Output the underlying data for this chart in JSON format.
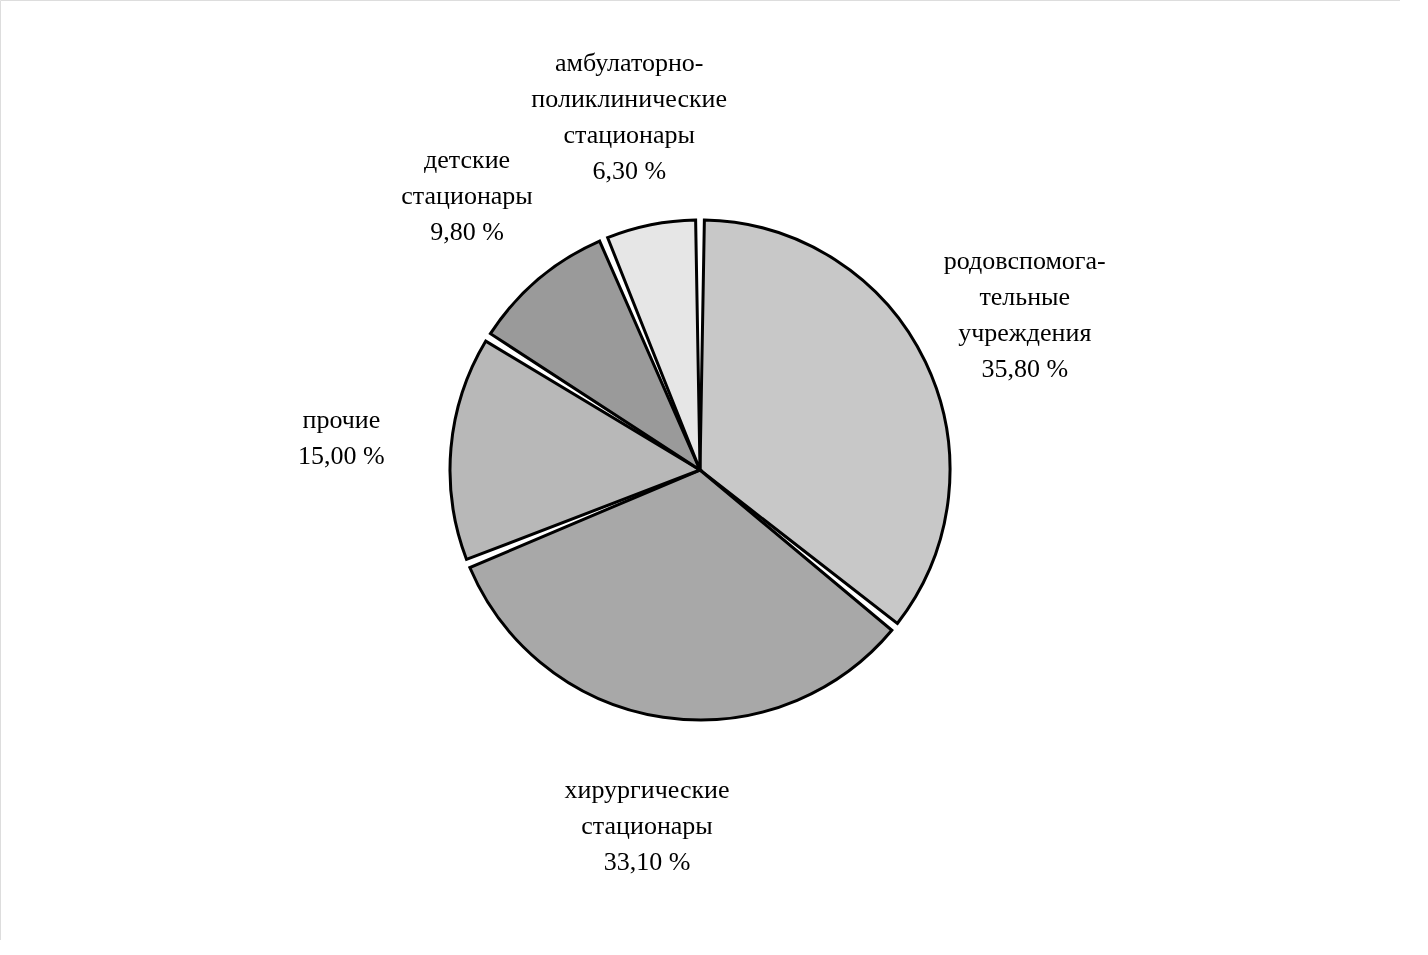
{
  "chart_data": {
    "type": "pie",
    "categories": [
      "родовспомога-\nтельные\nучреждения",
      "хирургические\nстационары",
      "прочие",
      "детские\nстационары",
      "амбулаторно-\nполиклинические\nстационары"
    ],
    "values": [
      35.8,
      33.1,
      15.0,
      9.8,
      6.3
    ],
    "value_labels": [
      "35,80 %",
      "33,10 %",
      "15,00 %",
      "9,80 %",
      "6,30 %"
    ],
    "colors": [
      "#c8c8c8",
      "#a8a8a8",
      "#b8b8b8",
      "#9a9a9a",
      "#e6e6e6"
    ],
    "legend": false
  }
}
